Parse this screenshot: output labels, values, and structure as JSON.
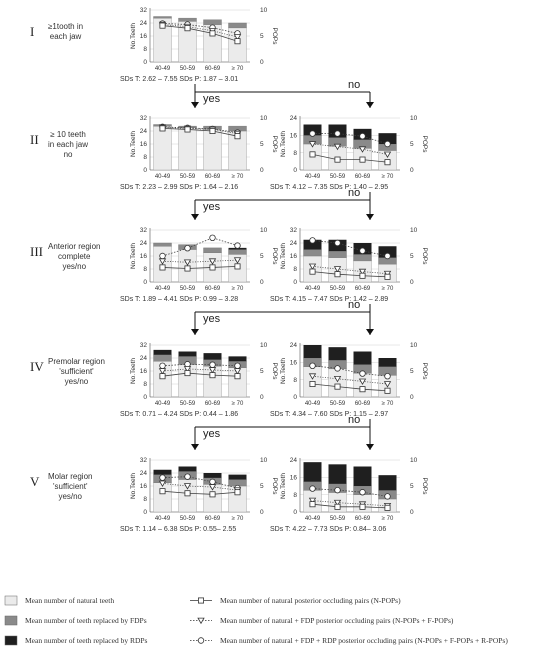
{
  "ages": [
    "40-49",
    "50-59",
    "60-69",
    "≥ 70"
  ],
  "axis": {
    "left": "No.Teeth",
    "right": "POPs"
  },
  "branch": {
    "yes": "yes",
    "no": "no"
  },
  "rows": [
    {
      "roman": "I",
      "desc": [
        "≥1tooth in",
        "each  jaw"
      ],
      "charts": [
        {
          "yticks_left": [
            "32",
            "24",
            "16",
            "8",
            "0"
          ],
          "yticks_right": [
            "10",
            "5",
            "0"
          ],
          "ymax": 32,
          "natural": [
            27,
            25,
            23,
            21
          ],
          "fdp": [
            1,
            2,
            3,
            3
          ],
          "rdp": [
            0,
            0,
            0,
            0
          ],
          "npops": [
            7,
            6.5,
            5.5,
            4
          ],
          "fpops": [
            7.2,
            6.8,
            6,
            4.8
          ],
          "rpops": [
            7.4,
            7.2,
            6.6,
            5.5
          ],
          "sds": "SDs  T: 2.62 – 7.55    SDs  P: 1.87 – 3.01"
        }
      ]
    },
    {
      "roman": "II",
      "desc": [
        "≥ 10 teeth",
        "in each jaw",
        "no"
      ],
      "charts": [
        {
          "yticks_left": [
            "32",
            "24",
            "16",
            "8",
            "0"
          ],
          "yticks_right": [
            "10",
            "5",
            "0"
          ],
          "ymax": 32,
          "natural": [
            27,
            26,
            25,
            24
          ],
          "fdp": [
            1,
            1,
            2,
            3
          ],
          "rdp": [
            0,
            0,
            0,
            0
          ],
          "npops": [
            8,
            7.8,
            7.5,
            6.5
          ],
          "fpops": [
            8.2,
            8,
            7.8,
            7
          ],
          "rpops": [
            8.3,
            8.1,
            7.9,
            7.2
          ],
          "sds": "SDs  T: 2.23 – 2.99    SDs  P: 1.64 – 2.16"
        },
        {
          "yticks_left": [
            "24",
            "16",
            "8",
            "0"
          ],
          "yticks_right": [
            "10",
            "5",
            "0"
          ],
          "ymax": 24,
          "natural": [
            12,
            11,
            10,
            9
          ],
          "fdp": [
            4,
            4,
            4,
            3
          ],
          "rdp": [
            5,
            6,
            5,
            5
          ],
          "npops": [
            3,
            2,
            2,
            1.5
          ],
          "fpops": [
            5,
            4.5,
            4,
            3
          ],
          "rpops": [
            7,
            7,
            6.5,
            5
          ],
          "sds": "SDs  T: 4.12 – 7.35    SDs  P: 1.40 – 2.95"
        }
      ]
    },
    {
      "roman": "III",
      "desc": [
        "Anterior region",
        "complete",
        "yes/no"
      ],
      "charts": [
        {
          "yticks_left": [
            "32",
            "24",
            "16",
            "8",
            "0"
          ],
          "yticks_right": [
            "10",
            "5",
            "0"
          ],
          "ymax": 32,
          "natural": [
            22,
            20,
            18,
            17
          ],
          "fdp": [
            2,
            3,
            3,
            3
          ],
          "rdp": [
            0,
            0,
            0,
            1
          ],
          "npops": [
            2.8,
            2.6,
            2.8,
            3
          ],
          "fpops": [
            4,
            3.8,
            4,
            4.2
          ],
          "rpops": [
            5,
            6.5,
            8.5,
            7
          ],
          "sds": "SDs  T: 1.89 – 4.41    SDs  P: 0.99 – 3.28"
        },
        {
          "yticks_left": [
            "32",
            "24",
            "16",
            "8",
            "0"
          ],
          "yticks_right": [
            "10",
            "5",
            "0"
          ],
          "ymax": 32,
          "natural": [
            16,
            15,
            13,
            11
          ],
          "fdp": [
            4,
            4,
            4,
            4
          ],
          "rdp": [
            6,
            7,
            7,
            7
          ],
          "npops": [
            2,
            1.5,
            1.2,
            1
          ],
          "fpops": [
            3,
            2.5,
            2,
            1.6
          ],
          "rpops": [
            8,
            7.5,
            6,
            5
          ],
          "sds": "SDs  T: 4.15 – 7.47    SDs  P: 1.42 – 2.89"
        }
      ]
    },
    {
      "roman": "IV",
      "desc": [
        "Premolar region",
        "'sufficient'",
        "yes/no"
      ],
      "charts": [
        {
          "yticks_left": [
            "32",
            "24",
            "16",
            "8",
            "0"
          ],
          "yticks_right": [
            "10",
            "5",
            "0"
          ],
          "ymax": 32,
          "natural": [
            22,
            20,
            19,
            18
          ],
          "fdp": [
            4,
            5,
            4,
            4
          ],
          "rdp": [
            3,
            3,
            4,
            3
          ],
          "npops": [
            4,
            4.6,
            4.2,
            4
          ],
          "fpops": [
            5,
            5.4,
            5.2,
            5
          ],
          "rpops": [
            6,
            6.3,
            6.2,
            6
          ],
          "sds": "SDs  T: 0.71 – 4.24    SDs  P: 0.44 – 1.86"
        },
        {
          "yticks_left": [
            "24",
            "16",
            "8",
            "0"
          ],
          "yticks_right": [
            "10",
            "5",
            "0"
          ],
          "ymax": 24,
          "natural": [
            14,
            13,
            11,
            10
          ],
          "fdp": [
            4,
            4,
            4,
            4
          ],
          "rdp": [
            6,
            6,
            6,
            4
          ],
          "npops": [
            2.5,
            2,
            1.5,
            1.2
          ],
          "fpops": [
            4,
            3.5,
            3,
            2.5
          ],
          "rpops": [
            6,
            5.5,
            4.5,
            4
          ],
          "sds": "SDs  T: 4.34 – 7.60    SDs  P: 1.15 – 2.97"
        }
      ]
    },
    {
      "roman": "V",
      "desc": [
        "Molar region",
        "'sufficient'",
        "yes/no"
      ],
      "charts": [
        {
          "yticks_left": [
            "32",
            "24",
            "16",
            "8",
            "0"
          ],
          "yticks_right": [
            "10",
            "5",
            "0"
          ],
          "ymax": 32,
          "natural": [
            18,
            20,
            17,
            16
          ],
          "fdp": [
            5,
            5,
            4,
            4
          ],
          "rdp": [
            3,
            3,
            3,
            3
          ],
          "npops": [
            4,
            3.6,
            3.4,
            3.8
          ],
          "fpops": [
            5.5,
            5,
            4.8,
            4.2
          ],
          "rpops": [
            6.6,
            6.8,
            5.8,
            4.6
          ],
          "sds": "SDs  T: 1.14 – 6.38    SDs  P: 0.55– 2.55"
        },
        {
          "yticks_left": [
            "24",
            "16",
            "8",
            "0"
          ],
          "yticks_right": [
            "10",
            "5",
            "0"
          ],
          "ymax": 24,
          "natural": [
            10,
            9,
            8,
            6
          ],
          "fdp": [
            4,
            4,
            4,
            4
          ],
          "rdp": [
            9,
            9,
            9,
            7
          ],
          "npops": [
            1.5,
            1,
            1,
            0.8
          ],
          "fpops": [
            2.2,
            1.8,
            1.5,
            1.2
          ],
          "rpops": [
            4.5,
            4.2,
            3.8,
            3
          ],
          "sds": "SDs  T: 4.22 – 7.73    SDs  P: 0.84– 3.06"
        }
      ]
    }
  ],
  "legend": [
    {
      "swatch": "natural",
      "label": "Mean number of natural teeth"
    },
    {
      "swatch": "fdp",
      "label": "Mean number of teeth replaced by FDPs"
    },
    {
      "swatch": "rdp",
      "label": "Mean number of teeth replaced by RDPs"
    },
    {
      "marker": "square",
      "label": "Mean number of natural posterior occluding pairs (N-POPs)"
    },
    {
      "marker": "triangle",
      "label": "Mean number of natural + FDP posterior occluding pairs (N-POPs + F-POPs)"
    },
    {
      "marker": "circle",
      "label": "Mean number of natural + FDP + RDP posterior occluding pairs (N-POPs + F-POPs + R-POPs)"
    }
  ],
  "colors": {
    "natural": "#ebebeb",
    "fdp": "#8a8a8a",
    "rdp": "#1f1f1f",
    "line": "#444444"
  }
}
